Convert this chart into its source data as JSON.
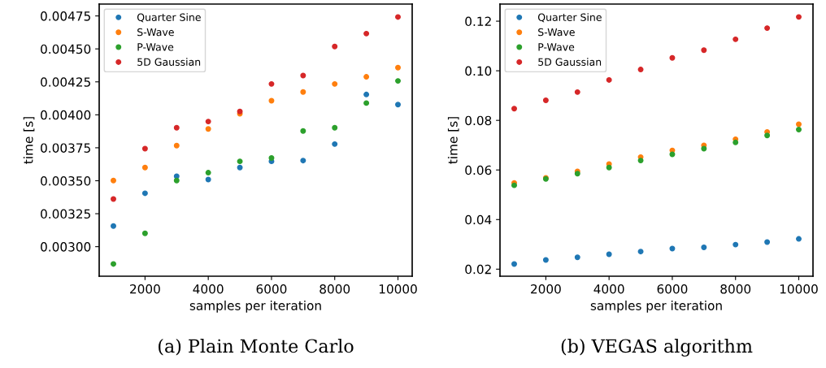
{
  "chart_data": [
    {
      "type": "scatter",
      "title": "(a) Plain Monte Carlo",
      "xlabel": "samples per iteration",
      "ylabel": "time [s]",
      "x": [
        1000,
        2000,
        3000,
        4000,
        5000,
        6000,
        7000,
        8000,
        9000,
        10000
      ],
      "series": [
        {
          "name": "Quarter Sine",
          "color": "#1f77b4",
          "values": [
            0.003156,
            0.003405,
            0.003534,
            0.003509,
            0.0036,
            0.003647,
            0.003653,
            0.003778,
            0.004154,
            0.004078
          ]
        },
        {
          "name": "S-Wave",
          "color": "#ff7f0e",
          "values": [
            0.003501,
            0.0036,
            0.003766,
            0.003893,
            0.004008,
            0.004107,
            0.004173,
            0.004234,
            0.004288,
            0.004358
          ]
        },
        {
          "name": "P-Wave",
          "color": "#2ca02c",
          "values": [
            0.002869,
            0.003101,
            0.003501,
            0.003561,
            0.003647,
            0.003672,
            0.003877,
            0.003902,
            0.004089,
            0.004257
          ]
        },
        {
          "name": "5D Gaussian",
          "color": "#d62728",
          "values": [
            0.003361,
            0.003743,
            0.003902,
            0.003949,
            0.004025,
            0.004234,
            0.004298,
            0.004518,
            0.004616,
            0.004742
          ]
        }
      ],
      "xlim": [
        550,
        10450
      ],
      "xticks": [
        2000,
        4000,
        6000,
        8000,
        10000
      ],
      "ylim": [
        0.002776,
        0.00484
      ],
      "yticks": [
        {
          "value": 0.003,
          "label": "0.00300"
        },
        {
          "value": 0.00325,
          "label": "0.00325"
        },
        {
          "value": 0.0035,
          "label": "0.00350"
        },
        {
          "value": 0.00375,
          "label": "0.00375"
        },
        {
          "value": 0.004,
          "label": "0.00400"
        },
        {
          "value": 0.00425,
          "label": "0.00425"
        },
        {
          "value": 0.0045,
          "label": "0.00450"
        },
        {
          "value": 0.00475,
          "label": "0.00475"
        }
      ],
      "legend": "top left",
      "grid": false,
      "marker": "circle"
    },
    {
      "type": "scatter",
      "title": "(b) VEGAS algorithm",
      "xlabel": "samples per iteration",
      "ylabel": "time [s]",
      "x": [
        1000,
        2000,
        3000,
        4000,
        5000,
        6000,
        7000,
        8000,
        9000,
        10000
      ],
      "series": [
        {
          "name": "Quarter Sine",
          "color": "#1f77b4",
          "values": [
            0.0221,
            0.0237,
            0.0248,
            0.026,
            0.0271,
            0.0283,
            0.0288,
            0.0299,
            0.0309,
            0.0322
          ]
        },
        {
          "name": "S-Wave",
          "color": "#ff7f0e",
          "values": [
            0.0548,
            0.0568,
            0.0594,
            0.0624,
            0.0652,
            0.0679,
            0.0699,
            0.0724,
            0.0753,
            0.0784
          ]
        },
        {
          "name": "P-Wave",
          "color": "#2ca02c",
          "values": [
            0.0538,
            0.0564,
            0.0585,
            0.061,
            0.0638,
            0.0663,
            0.0686,
            0.0711,
            0.0739,
            0.0763
          ]
        },
        {
          "name": "5D Gaussian",
          "color": "#d62728",
          "values": [
            0.0847,
            0.0881,
            0.0914,
            0.0963,
            0.1005,
            0.1052,
            0.1083,
            0.1127,
            0.1172,
            0.1217
          ]
        }
      ],
      "xlim": [
        550,
        10450
      ],
      "xticks": [
        2000,
        4000,
        6000,
        8000,
        10000
      ],
      "ylim": [
        0.01716,
        0.1269
      ],
      "yticks": [
        0.02,
        0.04,
        0.06,
        0.08,
        {
          "value": 0.1,
          "label": "0.10"
        },
        0.12
      ],
      "legend": "top left",
      "grid": false,
      "marker": "circle"
    }
  ]
}
